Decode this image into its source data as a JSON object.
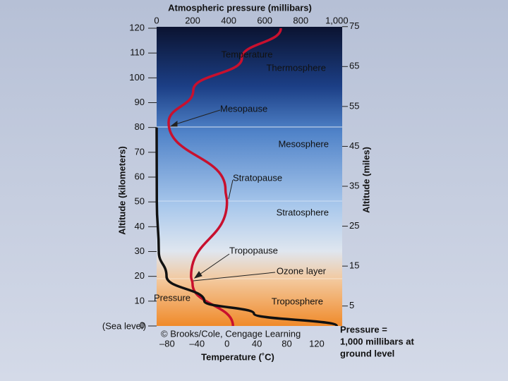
{
  "chart_data": {
    "type": "line",
    "title": "Atmospheric pressure (millibars)",
    "ylabel": "Altitude (kilometers)",
    "y2label": "Altitude (miles)",
    "xlabel": "Temperature (˚C)",
    "ylim": [
      0,
      120
    ],
    "yticks": [
      0,
      10,
      20,
      30,
      40,
      50,
      60,
      70,
      80,
      90,
      100,
      110,
      120
    ],
    "y2lim": [
      0,
      74.6
    ],
    "y2ticks": [
      5,
      15,
      25,
      35,
      45,
      55,
      65,
      75
    ],
    "xlim": [
      -94,
      154
    ],
    "xticks": [
      {
        "value": -80,
        "label": "–80"
      },
      {
        "value": -40,
        "label": "–40"
      },
      0,
      40,
      80,
      120
    ],
    "x2lim": [
      0,
      1030
    ],
    "x2ticks": [
      0,
      200,
      400,
      600,
      800,
      {
        "value": 1000,
        "label": "1,000"
      }
    ],
    "sea_level_label": "(Sea level)",
    "series": [
      {
        "name": "Temperature",
        "color": "#c8102e",
        "x": [
          8,
          -46,
          -48,
          0,
          -2,
          -78,
          -45,
          20,
          72
        ],
        "values": [
          0,
          17,
          20,
          50,
          55,
          82,
          95,
          108,
          120
        ]
      },
      {
        "name": "Pressure",
        "color": "#111111",
        "axis": "x2",
        "x": [
          1000,
          540,
          265,
          55,
          12,
          1,
          0
        ],
        "values": [
          0,
          5,
          10,
          20,
          30,
          50,
          80
        ]
      }
    ],
    "annotations": [
      "Thermosphere",
      "Mesopause",
      "Mesosphere",
      "Stratopause",
      "Stratosphere",
      "Tropopause",
      "Ozone layer",
      "Troposphere"
    ],
    "credit": "© Brooks/Cole, Cengage Learning",
    "note": [
      "Pressure =",
      "1,000 millibars at",
      "ground level"
    ]
  }
}
